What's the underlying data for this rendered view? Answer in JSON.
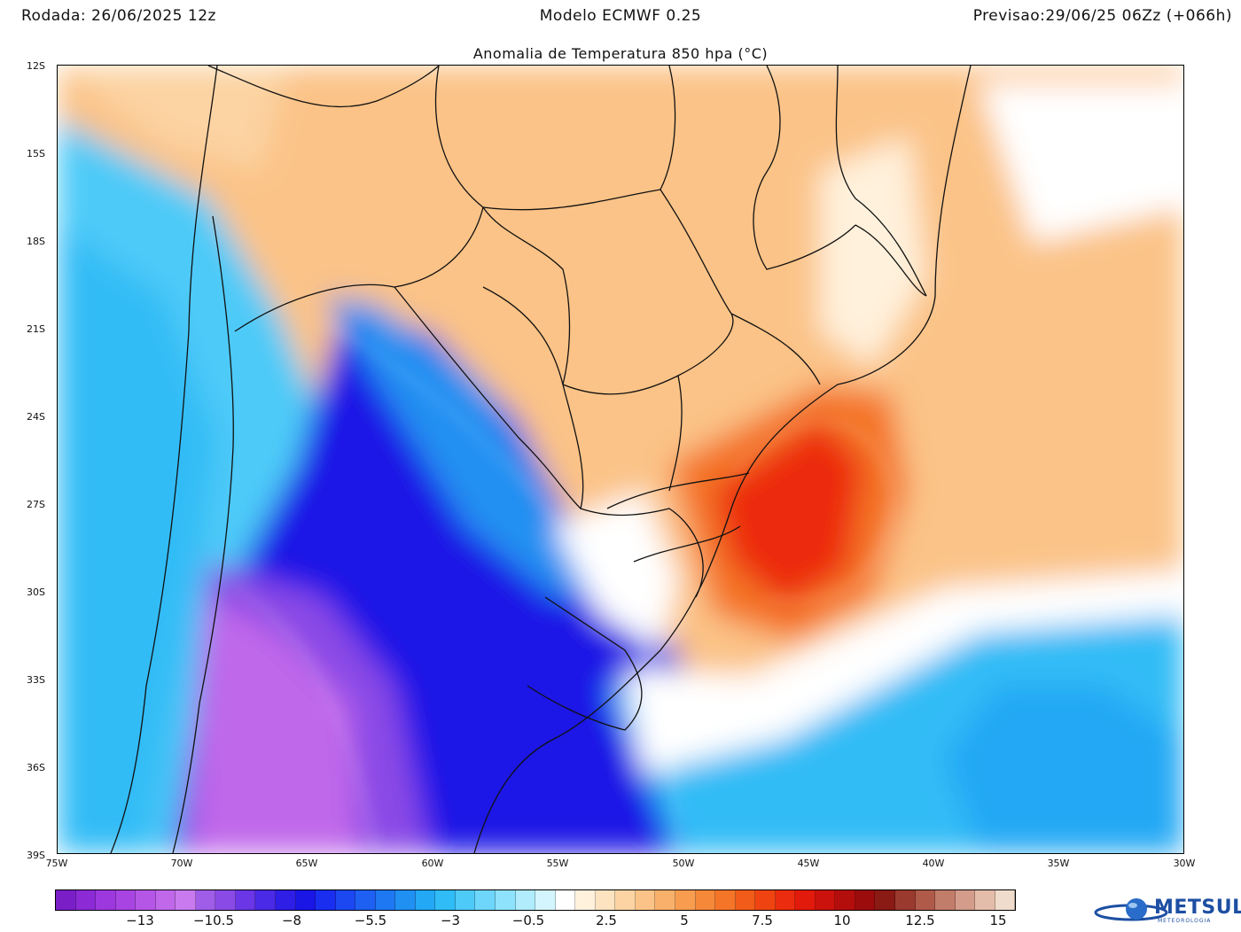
{
  "header": {
    "run": "Rodada: 26/06/2025 12z",
    "model": "Modelo ECMWF 0.25",
    "forecast": "Previsao:29/06/25 06Zz (+066h)"
  },
  "map": {
    "title": "Anomalia de Temperatura 850 hpa (°C)",
    "lat_labels": [
      "12S",
      "15S",
      "18S",
      "21S",
      "24S",
      "27S",
      "30S",
      "33S",
      "36S",
      "39S"
    ],
    "lon_labels": [
      "75W",
      "70W",
      "65W",
      "60W",
      "55W",
      "50W",
      "45W",
      "40W",
      "35W",
      "30W"
    ],
    "extent": {
      "lon_min": -75,
      "lon_max": -30,
      "lat_min": -39,
      "lat_max": -12
    }
  },
  "colorbar": {
    "labels": [
      "−13",
      "−10.5",
      "−8",
      "−5.5",
      "−3",
      "−0.5",
      "2.5",
      "5",
      "7.5",
      "10",
      "12.5",
      "15"
    ],
    "colors": [
      "#7a1fc8",
      "#8c2ad6",
      "#9c38de",
      "#a845e2",
      "#b556e6",
      "#c067ea",
      "#c97aee",
      "#a05ee8",
      "#8a4ae6",
      "#6a36e6",
      "#4a2ae6",
      "#2e1ee6",
      "#1a16e6",
      "#1a2ef0",
      "#1c48f2",
      "#1e60f2",
      "#1e78f2",
      "#2090f2",
      "#22a8f4",
      "#30bcf6",
      "#4ecaf8",
      "#6ed6fa",
      "#8ee2fb",
      "#b0ecfc",
      "#d4f5fd",
      "#ffffff",
      "#fff1dc",
      "#fde3c0",
      "#fcd3a2",
      "#fbc387",
      "#f9b06a",
      "#f89c50",
      "#f6883a",
      "#f47428",
      "#f25c1a",
      "#ef4412",
      "#ec2c0e",
      "#e21a0c",
      "#cc120c",
      "#b40e0c",
      "#9c0c0c",
      "#8a1a14",
      "#9a3a2e",
      "#b05a4a",
      "#c27c6a",
      "#d49c8a",
      "#e4bcaa",
      "#f0dccc"
    ]
  },
  "logo": {
    "name": "METSUL",
    "sub": "METEOROLOGIA"
  },
  "palette": {
    "cold_deep": "#c067ea",
    "cold": "#1a16e6",
    "cool": "#30bcf6",
    "neutral": "#ffffff",
    "warm": "#f9b06a",
    "hot": "#ef4412",
    "borders": "#111111"
  }
}
